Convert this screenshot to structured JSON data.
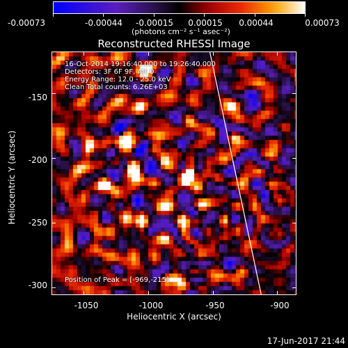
{
  "colorbar": {
    "tick_labels": [
      "-0.00073",
      "-0.00044",
      "-0.00015",
      "0.00015",
      "0.00044",
      "0.00073"
    ],
    "units_text": "(photons cm⁻² s⁻¹ asec⁻²)",
    "range": [
      -0.00073,
      0.00073
    ],
    "colormap": "blue-purple-black-red-orange-yellow-white"
  },
  "plot": {
    "title": "Reconstructed RHESSI Image",
    "xlabel": "Heliocentric X (arcsec)",
    "ylabel": "Heliocentric Y (arcsec)",
    "x_ticks": [
      "-1050",
      "-1000",
      "-950",
      "-900"
    ],
    "y_ticks": [
      "-150",
      "-200",
      "-250",
      "-300"
    ],
    "xlim": [
      -1075,
      -885
    ],
    "ylim": [
      -306,
      -118
    ],
    "info_lines": [
      "16-Oct-2014 19:16:40.000 to 19:26:40.000",
      "Detectors: 3F 6F 9F, Att 0",
      "Energy Range: 12.0 - 25.0 keV",
      "Clean    Total counts: 6.26E+03"
    ],
    "peak_text": "Position of Peak = [-969,-215]",
    "peak": [
      -969,
      -215
    ],
    "limb_line": [
      [
        -952,
        -118
      ],
      [
        -912,
        -306
      ]
    ]
  },
  "footer": {
    "timestamp": "17-Jun-2017 21:44"
  }
}
